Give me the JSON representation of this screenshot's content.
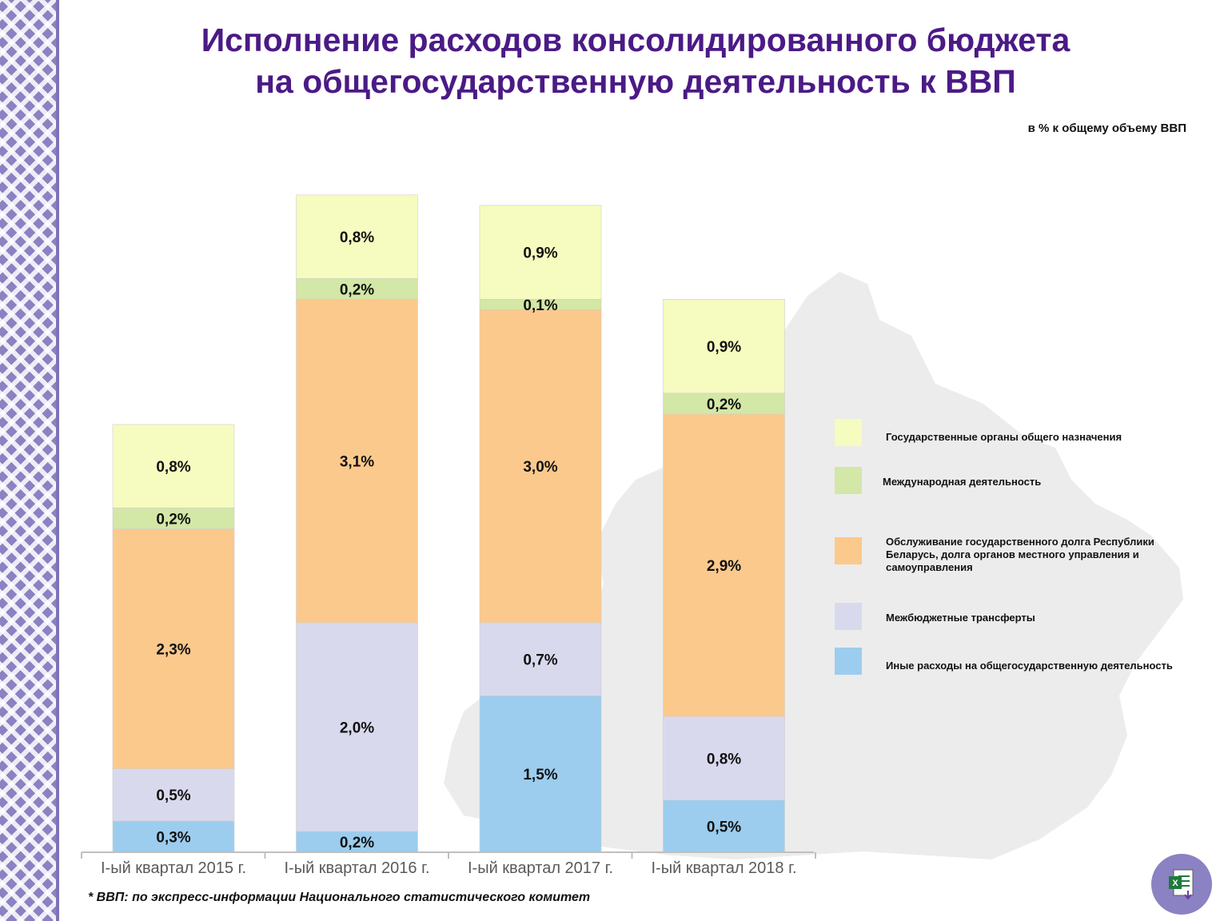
{
  "header": {
    "title_line1": "Исполнение расходов консолидированного бюджета",
    "title_line2": "на общегосударственную деятельность к ВВП",
    "unit": "в % к общему объему ВВП"
  },
  "footnote": "* ВВП: по экспресс-информации Национального статистического комитет",
  "colors": {
    "gov_bodies": "#f6fbbf",
    "international": "#d3e7a6",
    "debt": "#fbc98c",
    "transfers": "#d9d9ee",
    "other": "#9ccdee",
    "title": "#4b1a86",
    "ornament": "#8a82c2",
    "map": "#ececec"
  },
  "chart_data": {
    "type": "bar",
    "stacked": true,
    "categories": [
      "I-ый квартал 2015 г.",
      "I-ый квартал 2016 г.",
      "I-ый квартал 2017 г.",
      "I-ый квартал 2018 г."
    ],
    "series": [
      {
        "name": "Иные расходы на общегосударственную деятельность",
        "key": "other",
        "values": [
          0.3,
          0.2,
          1.5,
          0.5
        ],
        "labels": [
          "0,3%",
          "0,2%",
          "1,5%",
          "0,5%"
        ]
      },
      {
        "name": "Межбюджетные трансферты",
        "key": "transfers",
        "values": [
          0.5,
          2.0,
          0.7,
          0.8
        ],
        "labels": [
          "0,5%",
          "2,0%",
          "0,7%",
          "0,8%"
        ]
      },
      {
        "name": "Обслуживание государственного долга Республики Беларусь, долга органов местного управления и самоуправления",
        "key": "debt",
        "values": [
          2.3,
          3.1,
          3.0,
          2.9
        ],
        "labels": [
          "2,3%",
          "3,1%",
          "3,0%",
          "2,9%"
        ]
      },
      {
        "name": "Международная деятельность",
        "key": "international",
        "values": [
          0.2,
          0.2,
          0.1,
          0.2
        ],
        "labels": [
          "0,2%",
          "0,2%",
          "0,1%",
          "0,2%"
        ]
      },
      {
        "name": "Государственные органы общего назначения",
        "key": "gov_bodies",
        "values": [
          0.8,
          0.8,
          0.9,
          0.9
        ],
        "labels": [
          "0,8%",
          "0,8%",
          "0,9%",
          "0,9%"
        ]
      }
    ],
    "legend": {
      "position": "right",
      "order": [
        "gov_bodies",
        "international",
        "debt",
        "transfers",
        "other"
      ],
      "items": [
        {
          "key": "gov_bodies",
          "label": "Государственные органы общего назначения"
        },
        {
          "key": "international",
          "label": "Международная деятельность"
        },
        {
          "key": "debt",
          "label": "Обслуживание государственного долга Республики Беларусь, долга органов местного управления и самоуправления"
        },
        {
          "key": "transfers",
          "label": "Межбюджетные трансферты"
        },
        {
          "key": "other",
          "label": "Иные расходы на общегосударственную деятельность"
        }
      ]
    },
    "grid": false,
    "yaxis_visible": false
  }
}
